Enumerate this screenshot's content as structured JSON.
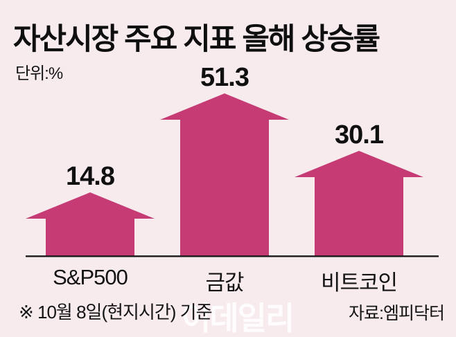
{
  "header": {
    "title": "자산시장 주요 지표 올해 상승률",
    "unit_label": "단위:%"
  },
  "chart_data": {
    "type": "bar",
    "variant": "up-arrow-pictogram",
    "title": "자산시장 주요 지표 올해 상승률",
    "unit": "%",
    "categories": [
      "S&P500",
      "금값",
      "비트코인"
    ],
    "values": [
      14.8,
      51.3,
      30.1
    ],
    "ylim": [
      0,
      55
    ],
    "grid": false,
    "legend": false,
    "value_labels_position": "above-bar",
    "colors": {
      "bar": "#C63B74",
      "background": "#F7EBEE",
      "text": "#111111",
      "baseline": "#1A1A1A",
      "watermark": "#FFFFFF"
    }
  },
  "footer": {
    "note": "※ 10월 8일(현지시간) 기준",
    "source": "자료:엠피닥터"
  },
  "watermark": {
    "text": "이데일리"
  }
}
